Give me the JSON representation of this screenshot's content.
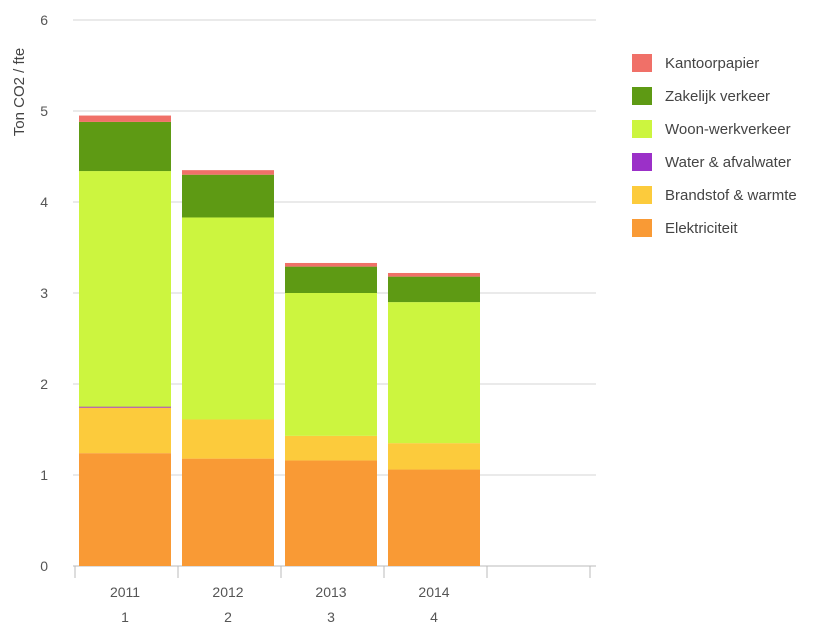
{
  "chart_data": {
    "type": "bar",
    "stacked": true,
    "ylabel": "Ton CO2 / fte",
    "ylim": [
      0,
      6
    ],
    "yticks": [
      0,
      1,
      2,
      3,
      4,
      5,
      6
    ],
    "grid": true,
    "legend_position": "right",
    "categories": [
      "2011",
      "2012",
      "2013",
      "2014"
    ],
    "category_sublabels": [
      "1",
      "2",
      "3",
      "4"
    ],
    "series": [
      {
        "name": "Elektriciteit",
        "color": "#f99a35",
        "values": [
          1.24,
          1.18,
          1.16,
          1.06
        ]
      },
      {
        "name": "Brandstof & warmte",
        "color": "#fccb3c",
        "values": [
          0.5,
          0.43,
          0.27,
          0.29
        ]
      },
      {
        "name": "Water & afvalwater",
        "color": "#9b30c8",
        "values": [
          0.01,
          0.0,
          0.0,
          0.0
        ]
      },
      {
        "name": "Woon-werkverkeer",
        "color": "#ccf53f",
        "values": [
          2.59,
          2.22,
          1.57,
          1.55
        ]
      },
      {
        "name": "Zakelijk verkeer",
        "color": "#5e9a14",
        "values": [
          0.54,
          0.47,
          0.29,
          0.28
        ]
      },
      {
        "name": "Kantoorpapier",
        "color": "#f07068",
        "values": [
          0.07,
          0.05,
          0.04,
          0.04
        ]
      }
    ]
  }
}
